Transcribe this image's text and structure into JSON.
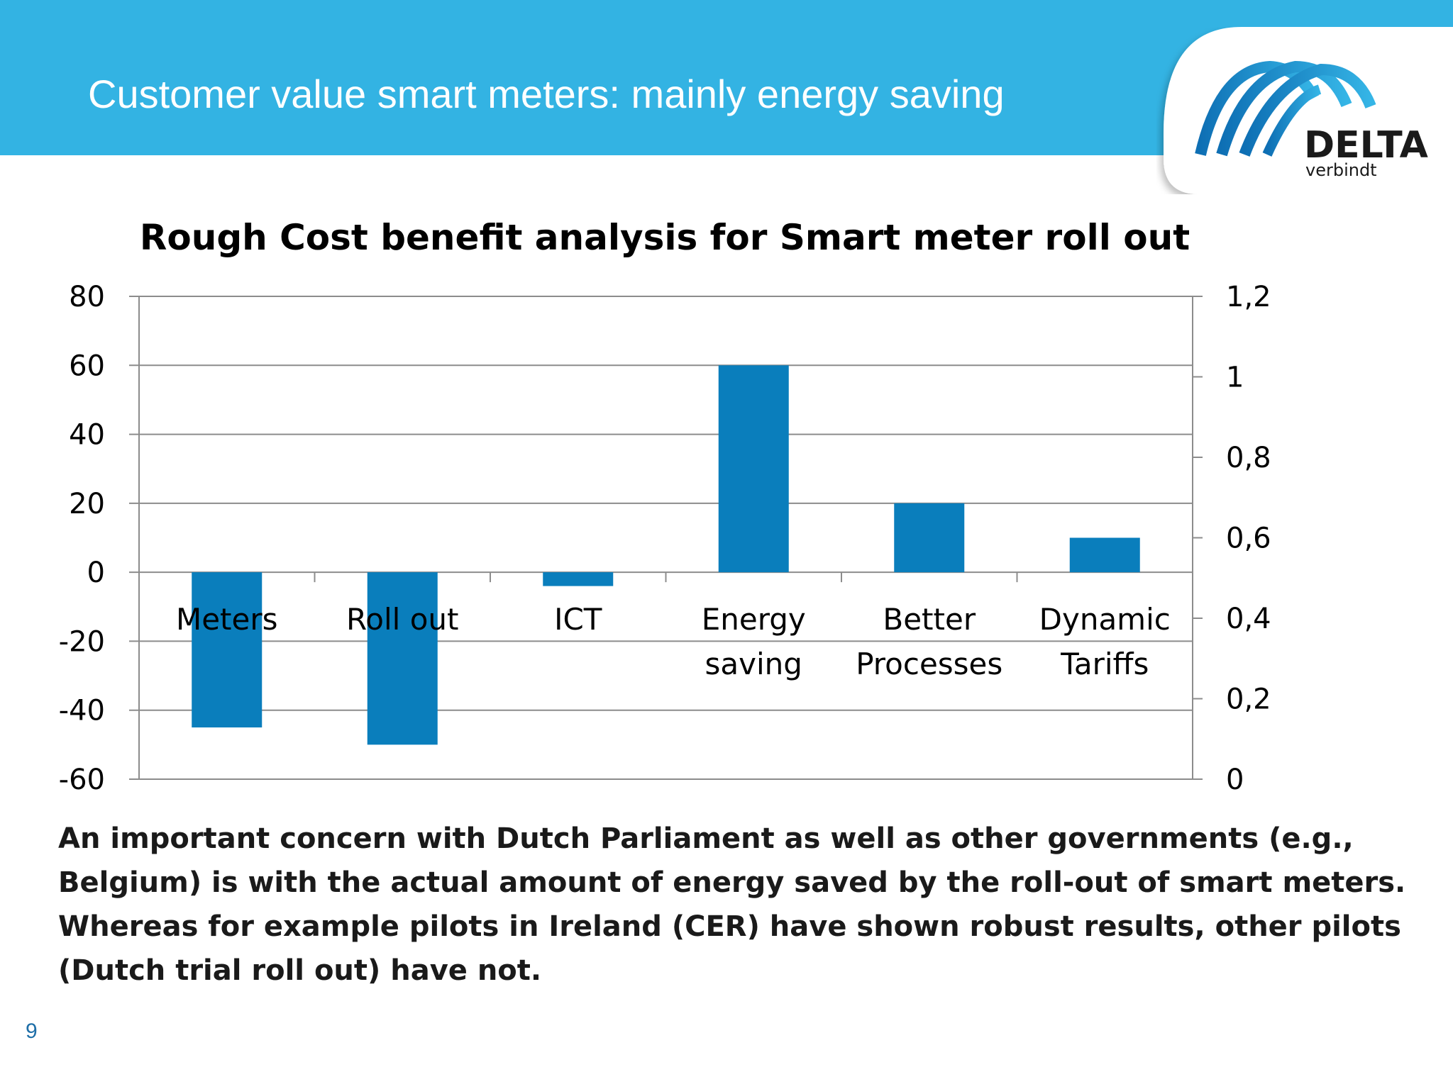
{
  "slide": {
    "title": "Customer value smart meters: mainly energy saving",
    "page_number": "9",
    "body_text": "An important concern with Dutch Parliament as well as other governments (e.g., Belgium) is with the actual amount of energy saved by the roll-out of smart meters. Whereas for example pilots in Ireland (CER) have shown robust results, other pilots (Dutch trial roll out) have not.",
    "header_color": "#33b3e3",
    "bar_color": "#0a7ebc"
  },
  "logo": {
    "wordmark": "DELTA",
    "tagline": "verbindt",
    "icon": "arches-logo-icon"
  },
  "chart_data": {
    "type": "bar",
    "title": "Rough Cost benefit analysis for Smart meter roll out",
    "categories": [
      [
        "Meters"
      ],
      [
        "Roll out"
      ],
      [
        "ICT"
      ],
      [
        "Energy",
        "saving"
      ],
      [
        "Better",
        "Processes"
      ],
      [
        "Dynamic",
        "Tariffs"
      ]
    ],
    "values": [
      -45,
      -50,
      -4,
      60,
      20,
      10
    ],
    "ylim": [
      -60,
      80
    ],
    "yticks": [
      "-60",
      "-40",
      "-20",
      "0",
      "20",
      "40",
      "60",
      "80"
    ],
    "ytick_values": [
      -60,
      -40,
      -20,
      0,
      20,
      40,
      60,
      80
    ],
    "y2lim": [
      0,
      1.2
    ],
    "y2ticks": [
      "0",
      "0,2",
      "0,4",
      "0,6",
      "0,8",
      "1",
      "1,2"
    ],
    "y2tick_values": [
      0,
      0.2,
      0.4,
      0.6,
      0.8,
      1.0,
      1.2
    ],
    "grid": true,
    "legend": "none"
  }
}
